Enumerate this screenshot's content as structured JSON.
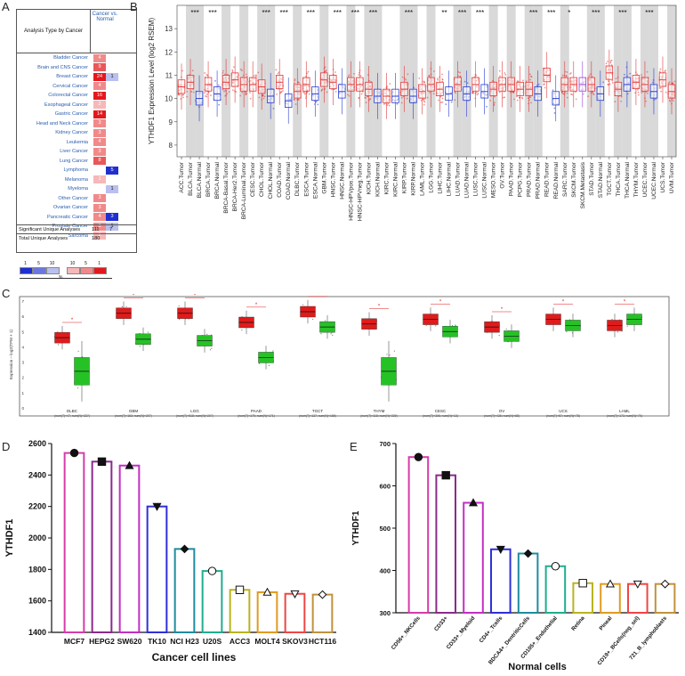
{
  "panels": {
    "A": {
      "label": "A",
      "header_left": "Analysis Type by Cancer",
      "header_right": "Cancer vs. Normal",
      "rows": [
        {
          "name": "Bladder Cancer",
          "up": "4",
          "down": ""
        },
        {
          "name": "Brain and CNS Cancer",
          "up": "9",
          "down": ""
        },
        {
          "name": "Breast Cancer",
          "up": "24",
          "down": "1"
        },
        {
          "name": "Cervical Cancer",
          "up": "4",
          "down": ""
        },
        {
          "name": "Colorectal Cancer",
          "up": "16",
          "down": ""
        },
        {
          "name": "Esophageal Cancer",
          "up": "2",
          "down": ""
        },
        {
          "name": "Gastric Cancer",
          "up": "14",
          "down": ""
        },
        {
          "name": "Head and Neck Cancer",
          "up": "3",
          "down": ""
        },
        {
          "name": "Kidney Cancer",
          "up": "3",
          "down": ""
        },
        {
          "name": "Leukemia",
          "up": "4",
          "down": ""
        },
        {
          "name": "Liver Cancer",
          "up": "3",
          "down": ""
        },
        {
          "name": "Lung Cancer",
          "up": "8",
          "down": ""
        },
        {
          "name": "Lymphoma",
          "up": "",
          "down": "5"
        },
        {
          "name": "Melanoma",
          "up": "1",
          "down": ""
        },
        {
          "name": "Myeloma",
          "up": "",
          "down": "1"
        },
        {
          "name": "Other Cancer",
          "up": "3",
          "down": ""
        },
        {
          "name": "Ovarian Cancer",
          "up": "3",
          "down": ""
        },
        {
          "name": "Pancreatic Cancer",
          "up": "4",
          "down": "3"
        },
        {
          "name": "Prostate Cancer",
          "up": "3",
          "down": "1"
        },
        {
          "name": "Sarcoma",
          "up": "2",
          "down": ""
        }
      ],
      "summary": [
        {
          "name": "Significant Unique Analyses",
          "v1": "111",
          "v2": "7"
        },
        {
          "name": "Total Unique Analyses",
          "v1": "180",
          "v2": ""
        }
      ],
      "legend_nums": [
        "1",
        "5",
        "10",
        "10",
        "5",
        "1"
      ],
      "legend_pct": "%"
    },
    "B": {
      "label": "B"
    },
    "C": {
      "label": "C"
    },
    "D": {
      "label": "D"
    },
    "E": {
      "label": "E"
    }
  },
  "chart_data": [
    {
      "type": "box",
      "id": "B",
      "ylabel": "YTHDF1 Expression Level (log2 RSEM)",
      "ylim": [
        7.5,
        14
      ],
      "yticks": [
        8,
        9,
        10,
        11,
        12,
        13
      ],
      "categories": [
        "ACC.Tumor",
        "BLCA.Tumor",
        "BLCA.Normal",
        "BRCA.Tumor",
        "BRCA.Normal",
        "BRCA-Basal.Tumor",
        "BRCA-Her2.Tumor",
        "BRCA-Luminal.Tumor",
        "CESC.Tumor",
        "CHOL.Tumor",
        "CHOL.Normal",
        "COAD.Tumor",
        "COAD.Normal",
        "DLBC.Tumor",
        "ESCA.Tumor",
        "ESCA.Normal",
        "GBM.Tumor",
        "HNSC.Tumor",
        "HNSC.Normal",
        "HNSC-HPVpos.Tumor",
        "HNSC-HPVneg.Tumor",
        "KICH.Tumor",
        "KICH.Normal",
        "KIRC.Tumor",
        "KIRC.Normal",
        "KIRP.Tumor",
        "KIRP.Normal",
        "LAML.Tumor",
        "LGG.Tumor",
        "LIHC.Tumor",
        "LIHC.Normal",
        "LUAD.Tumor",
        "LUAD.Normal",
        "LUSC.Tumor",
        "LUSC.Normal",
        "MESO.Tumor",
        "OV.Tumor",
        "PAAD.Tumor",
        "PCPG.Tumor",
        "PRAD.Tumor",
        "PRAD.Normal",
        "READ.Tumor",
        "READ.Normal",
        "SARC.Tumor",
        "SKCM.Tumor",
        "SKCM.Metastasis",
        "STAD.Tumor",
        "STAD.Normal",
        "TGCT.Tumor",
        "THCA.Tumor",
        "THCA.Normal",
        "THYM.Tumor",
        "UCEC.Tumor",
        "UCEC.Normal",
        "UCS.Tumor",
        "UVM.Tumor"
      ],
      "medians": [
        10.5,
        10.7,
        10.0,
        10.6,
        10.2,
        10.7,
        10.8,
        10.6,
        10.6,
        10.5,
        10.1,
        10.7,
        9.9,
        10.3,
        10.6,
        10.2,
        10.8,
        10.7,
        10.3,
        10.6,
        10.6,
        10.4,
        10.1,
        10.1,
        10.1,
        10.4,
        10.1,
        10.3,
        10.6,
        10.4,
        10.2,
        10.6,
        10.2,
        10.6,
        10.3,
        10.4,
        10.6,
        10.6,
        10.4,
        10.4,
        10.2,
        11.0,
        10.0,
        10.6,
        10.6,
        10.6,
        10.6,
        10.2,
        11.1,
        10.4,
        10.6,
        10.7,
        10.6,
        10.3,
        10.8,
        10.3
      ],
      "groups": [
        "tumor",
        "tumor",
        "normal",
        "tumor",
        "normal",
        "tumor",
        "tumor",
        "tumor",
        "tumor",
        "tumor",
        "normal",
        "tumor",
        "normal",
        "tumor",
        "tumor",
        "normal",
        "tumor",
        "tumor",
        "normal",
        "tumor",
        "tumor",
        "tumor",
        "normal",
        "tumor",
        "normal",
        "tumor",
        "normal",
        "tumor",
        "tumor",
        "tumor",
        "normal",
        "tumor",
        "normal",
        "tumor",
        "normal",
        "tumor",
        "tumor",
        "tumor",
        "tumor",
        "tumor",
        "normal",
        "tumor",
        "normal",
        "tumor",
        "tumor",
        "metastasis",
        "tumor",
        "normal",
        "tumor",
        "tumor",
        "normal",
        "tumor",
        "tumor",
        "normal",
        "tumor",
        "tumor"
      ],
      "significance": [
        {
          "after": "BLCA.Normal",
          "label": "***"
        },
        {
          "after": "BRCA.Normal",
          "label": "***"
        },
        {
          "after": "CHOL.Normal",
          "label": "***"
        },
        {
          "after": "COAD.Normal",
          "label": "***"
        },
        {
          "after": "ESCA.Normal",
          "label": "***"
        },
        {
          "after": "HNSC.Normal",
          "label": "***"
        },
        {
          "after": "HNSC-HPVneg.Tumor",
          "label": "***"
        },
        {
          "after": "KICH.Normal",
          "label": "***"
        },
        {
          "after": "KIRP.Normal",
          "label": "***"
        },
        {
          "after": "LIHC.Normal",
          "label": "**"
        },
        {
          "after": "LUAD.Normal",
          "label": "***"
        },
        {
          "after": "LUSC.Normal",
          "label": "***"
        },
        {
          "after": "PRAD.Normal",
          "label": "***"
        },
        {
          "after": "READ.Normal",
          "label": "***"
        },
        {
          "after": "SKCM.Tumor",
          "label": "*"
        },
        {
          "after": "STAD.Normal",
          "label": "***"
        },
        {
          "after": "THCA.Normal",
          "label": "***"
        },
        {
          "after": "UCEC.Normal",
          "label": "***"
        }
      ],
      "colors": {
        "tumor": "#e23a3a",
        "normal": "#2a3fd1",
        "metastasis": "#9b3fd6"
      }
    },
    {
      "type": "box",
      "id": "C",
      "ylabel": "Expression – log2(TPM + 1)",
      "ylim": [
        0,
        7
      ],
      "yticks": [
        0,
        1,
        2,
        3,
        4,
        5,
        6,
        7
      ],
      "categories": [
        "DLBC",
        "GBM",
        "LGG",
        "PAAD",
        "TGCT",
        "THYM",
        "CESC",
        "OV",
        "UCS",
        "LAML"
      ],
      "subtitles": [
        "(num(T)=47; num(N)=337)",
        "(num(T)=163; num(N)=207)",
        "(num(T)=518; num(N)=207)",
        "(num(T)=179; num(N)=171)",
        "(num(T)=137; num(N)=165)",
        "(num(T)=118; num(N)=339)",
        "(num(T)=306; num(N)=13)",
        "(num(T)=426; num(N)=88)",
        "(num(T)=57; num(N)=78)",
        "(num(T)=173; num(N)=70)"
      ],
      "tumor_medians": [
        4.6,
        6.2,
        6.2,
        5.6,
        6.3,
        5.5,
        5.8,
        5.3,
        5.8,
        5.4
      ],
      "normal_medians": [
        2.4,
        4.5,
        4.4,
        3.3,
        5.3,
        2.4,
        5.0,
        4.7,
        5.4,
        5.8
      ],
      "colors": {
        "tumor": "#e01b1b",
        "normal": "#25c225"
      }
    },
    {
      "type": "bar",
      "id": "D",
      "title": "",
      "xlabel": "Cancer cell lines",
      "ylabel": "YTHDF1",
      "ylim": [
        1400,
        2600
      ],
      "yticks": [
        1400,
        1600,
        1800,
        2000,
        2200,
        2400,
        2600
      ],
      "categories": [
        "MCF7",
        "HEPG2",
        "SW620",
        "TK10",
        "NCI H23",
        "U20S",
        "ACC3",
        "MOLT4",
        "SKOV3",
        "HCT116"
      ],
      "values": [
        2540,
        2485,
        2460,
        2200,
        1930,
        1790,
        1670,
        1655,
        1645,
        1640
      ],
      "colors": [
        "#d63caa",
        "#8a2a8a",
        "#c32ec3",
        "#2f2fd8",
        "#1e8c9e",
        "#1fae8e",
        "#b9b320",
        "#e09b1f",
        "#ef4545",
        "#c0923d"
      ],
      "markers": [
        "circle",
        "square",
        "triangle",
        "triangle-down",
        "diamond",
        "circle-open",
        "square-open",
        "triangle-open",
        "triangle-down-open",
        "diamond-open"
      ]
    },
    {
      "type": "bar",
      "id": "E",
      "title": "",
      "xlabel": "Normal cells",
      "ylabel": "YTHDF1",
      "ylim": [
        300,
        700
      ],
      "yticks": [
        300,
        400,
        500,
        600,
        700
      ],
      "categories": [
        "CD56+_NKCells",
        "CD33+",
        "CD33+_Myeloid",
        "CD4+_Tcells",
        "BDCA4+_DentriticCells",
        "CD105+_Endothelial",
        "Retina",
        "Pineal",
        "CD19+_BCells(neg_sel)",
        "721_B_lymphoblasts"
      ],
      "values": [
        668,
        625,
        560,
        450,
        440,
        410,
        370,
        368,
        368,
        368
      ],
      "colors": [
        "#d63caa",
        "#8a2a8a",
        "#c32ec3",
        "#2f2fd8",
        "#1e8c9e",
        "#1fae8e",
        "#b9b320",
        "#e09b1f",
        "#ef4545",
        "#c0923d"
      ],
      "markers": [
        "circle",
        "square",
        "triangle",
        "triangle-down",
        "diamond",
        "circle-open",
        "square-open",
        "triangle-open",
        "triangle-down-open",
        "diamond-open"
      ]
    }
  ]
}
